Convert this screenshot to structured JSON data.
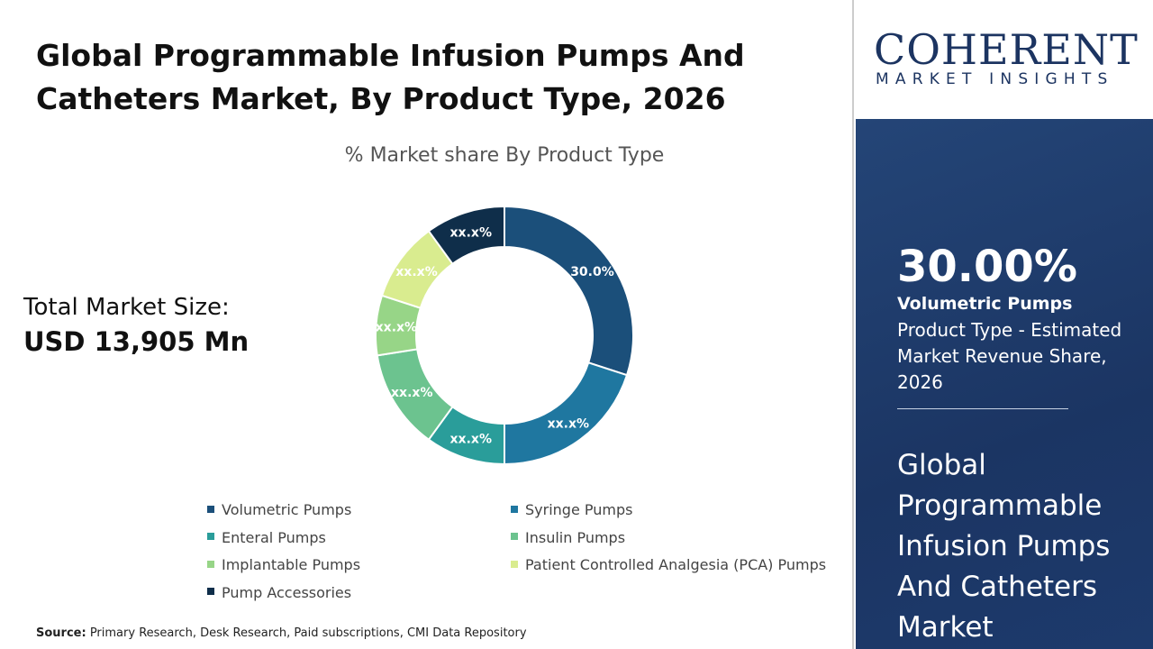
{
  "header": {
    "title": "Global Programmable Infusion Pumps And Catheters Market, By Product Type, 2026"
  },
  "total": {
    "label": "Total Market Size:",
    "value": "USD 13,905 Mn"
  },
  "source": {
    "label": "Source:",
    "text": " Primary Research, Desk Research, Paid subscriptions, CMI Data Repository"
  },
  "logo": {
    "name": "COHERENT",
    "tagline": "MARKET INSIGHTS"
  },
  "highlight": {
    "percent": "30.00%",
    "segment": "Volumetric Pumps",
    "description": "Product Type - Estimated Market Revenue Share, 2026",
    "market": "Global Programmable Infusion Pumps And Catheters Market",
    "background": "#1f3a68"
  },
  "chart_data": {
    "type": "donut",
    "title": "% Market share By Product Type",
    "categories": [
      "Volumetric Pumps",
      "Syringe Pumps",
      "Enteral Pumps",
      "Insulin Pumps",
      "Implantable Pumps",
      "Patient Controlled Analgesia (PCA) Pumps",
      "Pump Accessories"
    ],
    "values": [
      30.0,
      20.0,
      10.0,
      12.5,
      7.5,
      10.0,
      10.0
    ],
    "labels": [
      "30.0%",
      "xx.x%",
      "xx.x%",
      "xx.x%",
      "xx.x%",
      "xx.x%",
      "xx.x%"
    ],
    "colors": [
      "#1b4f7a",
      "#1f77a0",
      "#2a9d9a",
      "#6cc38f",
      "#97d587",
      "#d9ec8f",
      "#0f2e4a"
    ],
    "legend_position": "bottom"
  }
}
